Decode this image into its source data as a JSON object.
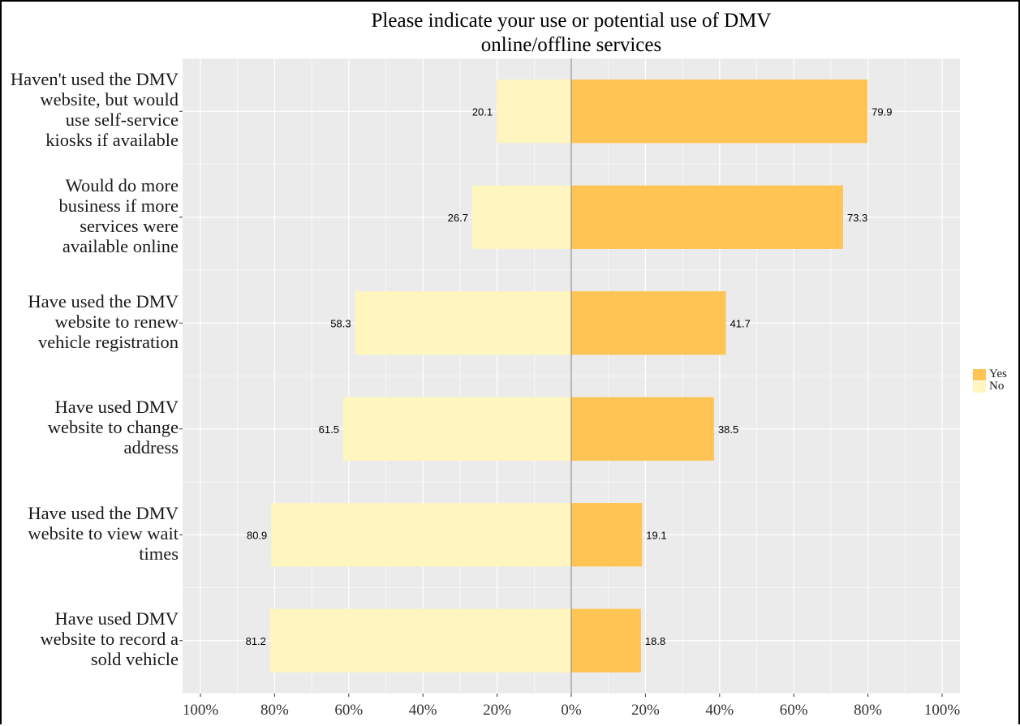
{
  "chart_data": {
    "type": "bar",
    "orientation": "horizontal",
    "diverging": true,
    "title": [
      "Please indicate your use or potential use of DMV",
      "online/offline services"
    ],
    "categories": [
      [
        "Haven't used the DMV",
        "website, but would",
        "use self-service",
        "kiosks if available"
      ],
      [
        "Would do more",
        "business if more",
        "services were",
        "available online"
      ],
      [
        "Have used the DMV",
        "website to renew",
        "vehicle registration"
      ],
      [
        "Have used DMV",
        "website to change",
        "address"
      ],
      [
        "Have used the DMV",
        "website to view wait",
        "times"
      ],
      [
        "Have used DMV",
        "website to record a",
        "sold vehicle"
      ]
    ],
    "series": [
      {
        "name": "Yes",
        "color": "#FFC453",
        "values": [
          79.9,
          73.3,
          41.7,
          38.5,
          19.1,
          18.8
        ]
      },
      {
        "name": "No",
        "color": "#FFF5BF",
        "values": [
          20.1,
          26.7,
          58.3,
          61.5,
          80.9,
          81.2
        ]
      }
    ],
    "xlim": [
      -100,
      100
    ],
    "x_ticks": [
      -100,
      -80,
      -60,
      -40,
      -20,
      0,
      20,
      40,
      60,
      80,
      100
    ],
    "x_tick_labels": [
      "100%",
      "80%",
      "60%",
      "40%",
      "20%",
      "0%",
      "20%",
      "40%",
      "60%",
      "80%",
      "100%"
    ],
    "grid": true,
    "legend_position": "right",
    "colors": {
      "panel": "#EBEBEB",
      "grid": "#FFFFFF",
      "zero_line": "#7F7F7F"
    }
  }
}
